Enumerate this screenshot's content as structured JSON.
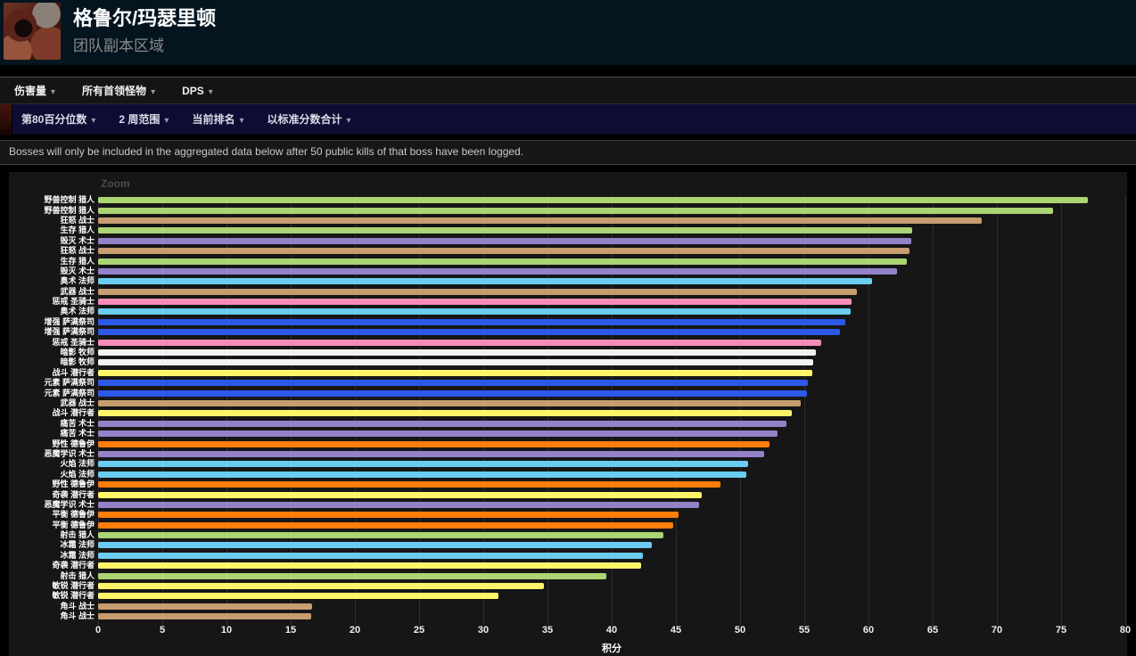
{
  "header": {
    "title": "格鲁尔/玛瑟里顿",
    "subtitle": "团队副本区域",
    "icon": "raid-zone-icon"
  },
  "toolbar_primary": {
    "items": [
      {
        "label": "伤害量"
      },
      {
        "label": "所有首领怪物"
      },
      {
        "label": "DPS"
      }
    ],
    "caret": "▾"
  },
  "toolbar_secondary": {
    "items": [
      {
        "label": "第80百分位数"
      },
      {
        "label": "2 周范围"
      },
      {
        "label": "当前排名"
      },
      {
        "label": "以标准分数合计"
      }
    ],
    "caret": "▾"
  },
  "notice": "Bosses will only be included in the aggregated data below after 50 public kills of that boss have been logged.",
  "chart": {
    "zoom_label": "Zoom"
  },
  "chart_data": {
    "type": "bar",
    "orientation": "horizontal",
    "title": "",
    "xlabel": "积分",
    "ylabel": "",
    "xlim": [
      0,
      80
    ],
    "xticks": [
      0,
      5,
      10,
      15,
      20,
      25,
      30,
      35,
      40,
      45,
      50,
      55,
      60,
      65,
      70,
      75,
      80
    ],
    "grid": true,
    "class_colors": {
      "猎人": "#abd473",
      "战士": "#c79c6e",
      "术士": "#9482c9",
      "法师": "#69ccf0",
      "圣骑士": "#f58cba",
      "萨满祭司": "#2c59e9",
      "牧师": "#f2f2f2",
      "潜行者": "#fff569",
      "德鲁伊": "#ff7d0a"
    },
    "rows": [
      {
        "spec": "野兽控制",
        "class": "猎人",
        "value": 77.1
      },
      {
        "spec": "野兽控制",
        "class": "猎人",
        "value": 74.4
      },
      {
        "spec": "狂怒",
        "class": "战士",
        "value": 68.8
      },
      {
        "spec": "生存",
        "class": "猎人",
        "value": 63.4
      },
      {
        "spec": "毁灭",
        "class": "术士",
        "value": 63.3
      },
      {
        "spec": "狂怒",
        "class": "战士",
        "value": 63.2
      },
      {
        "spec": "生存",
        "class": "猎人",
        "value": 63.0
      },
      {
        "spec": "毁灭",
        "class": "术士",
        "value": 62.2
      },
      {
        "spec": "奥术",
        "class": "法师",
        "value": 60.3
      },
      {
        "spec": "武器",
        "class": "战士",
        "value": 59.1
      },
      {
        "spec": "惩戒",
        "class": "圣骑士",
        "value": 58.7
      },
      {
        "spec": "奥术",
        "class": "法师",
        "value": 58.6
      },
      {
        "spec": "增强",
        "class": "萨满祭司",
        "value": 58.2
      },
      {
        "spec": "增强",
        "class": "萨满祭司",
        "value": 57.8
      },
      {
        "spec": "惩戒",
        "class": "圣骑士",
        "value": 56.3
      },
      {
        "spec": "暗影",
        "class": "牧师",
        "value": 55.9
      },
      {
        "spec": "暗影",
        "class": "牧师",
        "value": 55.7
      },
      {
        "spec": "战斗",
        "class": "潜行者",
        "value": 55.6
      },
      {
        "spec": "元素",
        "class": "萨满祭司",
        "value": 55.3
      },
      {
        "spec": "元素",
        "class": "萨满祭司",
        "value": 55.2
      },
      {
        "spec": "武器",
        "class": "战士",
        "value": 54.7
      },
      {
        "spec": "战斗",
        "class": "潜行者",
        "value": 54.0
      },
      {
        "spec": "痛苦",
        "class": "术士",
        "value": 53.6
      },
      {
        "spec": "痛苦",
        "class": "术士",
        "value": 52.9
      },
      {
        "spec": "野性",
        "class": "德鲁伊",
        "value": 52.3
      },
      {
        "spec": "恶魔学识",
        "class": "术士",
        "value": 51.9
      },
      {
        "spec": "火焰",
        "class": "法师",
        "value": 50.6
      },
      {
        "spec": "火焰",
        "class": "法师",
        "value": 50.5
      },
      {
        "spec": "野性",
        "class": "德鲁伊",
        "value": 48.5
      },
      {
        "spec": "奇袭",
        "class": "潜行者",
        "value": 47.0
      },
      {
        "spec": "恶魔学识",
        "class": "术士",
        "value": 46.8
      },
      {
        "spec": "平衡",
        "class": "德鲁伊",
        "value": 45.2
      },
      {
        "spec": "平衡",
        "class": "德鲁伊",
        "value": 44.8
      },
      {
        "spec": "射击",
        "class": "猎人",
        "value": 44.0
      },
      {
        "spec": "冰霜",
        "class": "法师",
        "value": 43.1
      },
      {
        "spec": "冰霜",
        "class": "法师",
        "value": 42.4
      },
      {
        "spec": "奇袭",
        "class": "潜行者",
        "value": 42.3
      },
      {
        "spec": "射击",
        "class": "猎人",
        "value": 39.6
      },
      {
        "spec": "敏锐",
        "class": "潜行者",
        "value": 34.7
      },
      {
        "spec": "敏锐",
        "class": "潜行者",
        "value": 31.2
      },
      {
        "spec": "角斗",
        "class": "战士",
        "value": 16.7
      },
      {
        "spec": "角斗",
        "class": "战士",
        "value": 16.6
      }
    ]
  }
}
